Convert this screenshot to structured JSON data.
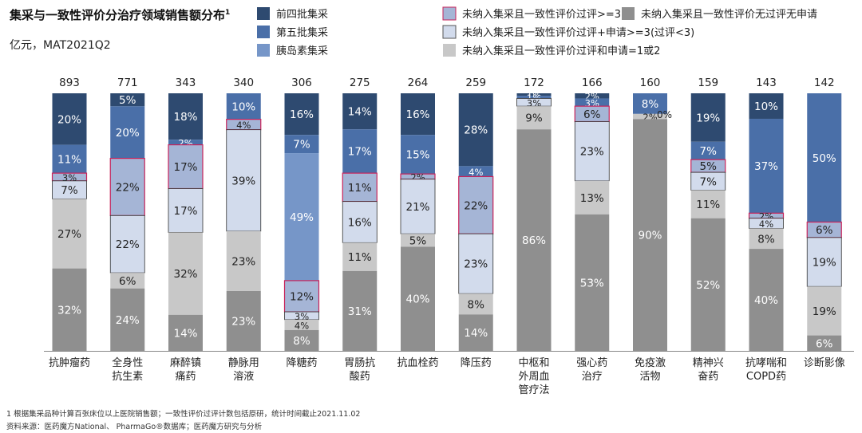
{
  "title": "集采与一致性评价分治疗领域销售额分布",
  "title_sup": "1",
  "subtitle": "亿元，MAT2021Q2",
  "footnote": "1 根据集采品种计算百张床位以上医院销售额；一致性评价过评计数包括原研，统计时间截止2021.11.02",
  "source": "资料来源：医药魔方National、 PharmaGo®数据库；医药魔方研究与分析",
  "colors": {
    "s1": "#2e4a70",
    "s2": "#4a6fa8",
    "s3": "#7696c8",
    "s4": "#a5b5d6",
    "s5": "#d2dbec",
    "s6": "#c8c8c8",
    "s7": "#8f8f8f",
    "highlight": "#c8235a"
  },
  "chart_data": {
    "type": "bar",
    "stacked": "percent",
    "categories": [
      "抗肿瘤药",
      "全身性\n抗生素",
      "麻醉镇\n痛药",
      "静脉用\n溶液",
      "降糖药",
      "胃肠抗\n酸药",
      "抗血栓药",
      "降压药",
      "中枢和\n外周血\n管疗法",
      "强心药\n治疗",
      "免疫激\n活物",
      "精神兴\n奋药",
      "抗哮喘和\nCOPD药",
      "诊断影像"
    ],
    "totals": [
      893,
      771,
      343,
      340,
      306,
      275,
      264,
      259,
      172,
      166,
      160,
      159,
      143,
      142
    ],
    "series": [
      {
        "name": "前四批集采",
        "values": [
          20,
          5,
          18,
          0,
          16,
          14,
          16,
          28,
          1,
          2,
          0,
          19,
          10,
          0
        ],
        "labels": [
          "20%",
          "5%",
          "18%",
          "",
          "16%",
          "14%",
          "16%",
          "28%",
          "1%",
          "2%",
          "",
          "19%",
          "10%",
          ""
        ]
      },
      {
        "name": "第五批集采",
        "values": [
          11,
          20,
          2,
          10,
          7,
          17,
          15,
          4,
          1,
          3,
          8,
          7,
          37,
          50
        ],
        "labels": [
          "11%",
          "20%",
          "2%",
          "10%",
          "7%",
          "17%",
          "15%",
          "4%",
          "1%",
          "3%",
          "8%",
          "7%",
          "37%",
          "50%"
        ]
      },
      {
        "name": "胰岛素集采",
        "values": [
          0,
          0,
          0,
          0,
          49,
          0,
          0,
          0,
          0,
          0,
          0,
          0,
          0,
          0
        ],
        "labels": [
          "",
          "",
          "",
          "",
          "49%",
          "",
          "",
          "",
          "",
          "",
          "",
          "",
          "",
          ""
        ]
      },
      {
        "name": "未纳入集采且一致性评价过评>=3",
        "values": [
          3,
          22,
          17,
          4,
          12,
          11,
          2,
          22,
          0,
          6,
          0,
          5,
          2,
          6
        ],
        "labels": [
          "3%",
          "22%",
          "17%",
          "4%",
          "12%",
          "11%",
          "2%",
          "22%",
          "",
          "6%",
          "",
          "5%",
          "2%",
          "6%"
        ]
      },
      {
        "name": "未纳入集采且一致性评价过评+申请>=3(过评<3)",
        "values": [
          7,
          22,
          17,
          39,
          3,
          16,
          21,
          23,
          3,
          23,
          0,
          7,
          4,
          19
        ],
        "labels": [
          "7%",
          "22%",
          "17%",
          "39%",
          "3%",
          "16%",
          "21%",
          "23%",
          "3%",
          "23%",
          "0%",
          "7%",
          "4%",
          "19%"
        ]
      },
      {
        "name": "未纳入集采且一致性评价过评和申请=1或2",
        "values": [
          27,
          6,
          32,
          23,
          4,
          11,
          5,
          8,
          9,
          13,
          2,
          11,
          8,
          19
        ],
        "labels": [
          "27%",
          "6%",
          "32%",
          "23%",
          "4%",
          "11%",
          "5%",
          "8%",
          "9%",
          "13%",
          "2%",
          "11%",
          "8%",
          "19%"
        ]
      },
      {
        "name": "未纳入集采且一致性评价无过评无申请",
        "values": [
          32,
          24,
          14,
          23,
          8,
          31,
          40,
          14,
          86,
          53,
          90,
          52,
          40,
          6
        ],
        "labels": [
          "32%",
          "24%",
          "14%",
          "23%",
          "8%",
          "31%",
          "40%",
          "14%",
          "86%",
          "53%",
          "90%",
          "52%",
          "40%",
          "6%"
        ]
      }
    ],
    "legend_position": "top"
  }
}
